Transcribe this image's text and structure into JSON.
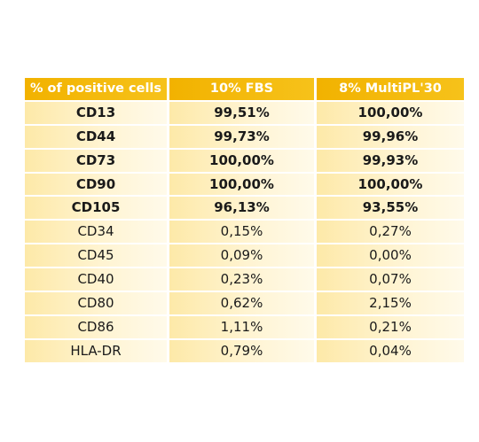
{
  "table": {
    "headers": [
      "% of positive cells",
      "10% FBS",
      "8% MultiPL'30"
    ],
    "rows": [
      {
        "marker": "CD13",
        "fbs": "99,51%",
        "multipl": "100,00%",
        "bold": true
      },
      {
        "marker": "CD44",
        "fbs": "99,73%",
        "multipl": "99,96%",
        "bold": true
      },
      {
        "marker": "CD73",
        "fbs": "100,00%",
        "multipl": "99,93%",
        "bold": true
      },
      {
        "marker": "CD90",
        "fbs": "100,00%",
        "multipl": "100,00%",
        "bold": true
      },
      {
        "marker": "CD105",
        "fbs": "96,13%",
        "multipl": "93,55%",
        "bold": true
      },
      {
        "marker": "CD34",
        "fbs": "0,15%",
        "multipl": "0,27%",
        "bold": false
      },
      {
        "marker": "CD45",
        "fbs": "0,09%",
        "multipl": "0,00%",
        "bold": false
      },
      {
        "marker": "CD40",
        "fbs": "0,23%",
        "multipl": "0,07%",
        "bold": false
      },
      {
        "marker": "CD80",
        "fbs": "0,62%",
        "multipl": "2,15%",
        "bold": false
      },
      {
        "marker": "CD86",
        "fbs": "1,11%",
        "multipl": "0,21%",
        "bold": false
      },
      {
        "marker": "HLA-DR",
        "fbs": "0,79%",
        "multipl": "0,04%",
        "bold": false
      }
    ]
  },
  "colors": {
    "header_bg": "#f2b200",
    "row_bg": "#fde9a8",
    "text": "#1a1a1a"
  }
}
